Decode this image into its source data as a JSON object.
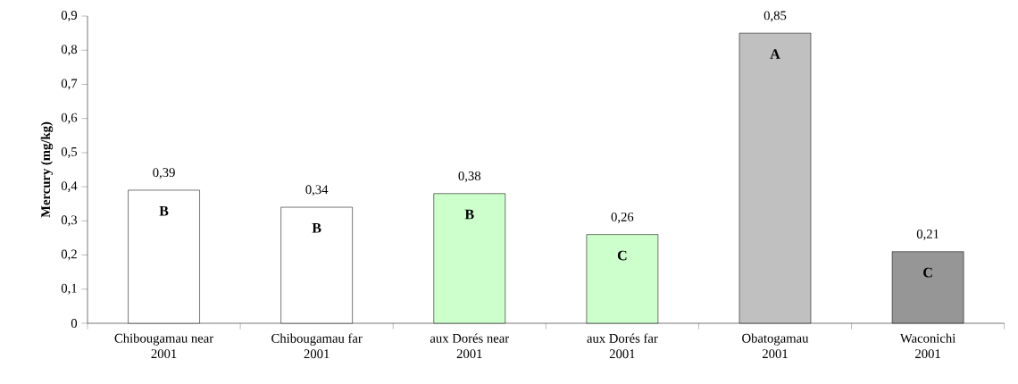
{
  "chart_data": {
    "type": "bar",
    "ylabel": "Mercury (mg/kg)",
    "categories": [
      "Chibougamau near\n2001",
      "Chibougamau far\n2001",
      "aux Dorés near\n2001",
      "aux Dorés far\n2001",
      "Obatogamau\n2001",
      "Waconichi\n2001"
    ],
    "values": [
      0.39,
      0.34,
      0.38,
      0.26,
      0.85,
      0.21
    ],
    "colors": [
      "#ffffff",
      "#ffffff",
      "#ccffcc",
      "#ccffcc",
      "#c0c0c0",
      "#969696"
    ],
    "value_labels": [
      "0,39",
      "0,34",
      "0,38",
      "0,26",
      "0,85",
      "0,21"
    ],
    "ylim": [
      0,
      0.9
    ],
    "yticks": [
      0,
      {
        "value": 0.1,
        "label": "0,1"
      },
      {
        "value": 0.2,
        "label": "0,2"
      },
      {
        "value": 0.3,
        "label": "0,3"
      },
      {
        "value": 0.4,
        "label": "0,4"
      },
      {
        "value": 0.5,
        "label": "0,5"
      },
      {
        "value": 0.6,
        "label": "0,6"
      },
      {
        "value": 0.7,
        "label": "0,7"
      },
      {
        "value": 0.8,
        "label": "0,8"
      },
      {
        "value": 0.9,
        "label": "0,9"
      }
    ],
    "annotations": [
      "B",
      "B",
      "B",
      "C",
      "A",
      "C"
    ],
    "grid": false,
    "legend": false
  }
}
